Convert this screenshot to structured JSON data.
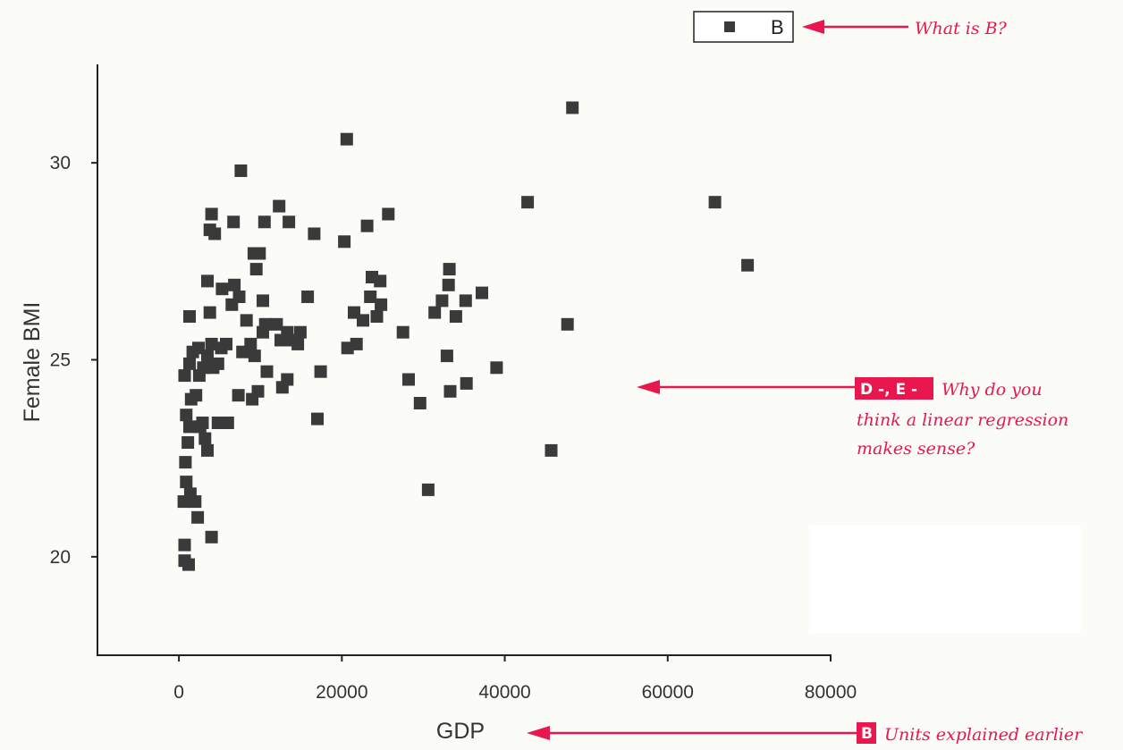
{
  "chart_data": {
    "type": "scatter",
    "xlabel": "GDP",
    "ylabel": "Female BMI",
    "xlim": [
      -10000,
      80000
    ],
    "ylim": [
      17.5,
      32.5
    ],
    "xticks": [
      "0",
      "20000",
      "40000",
      "60000",
      "80000"
    ],
    "yticks": [
      "20",
      "25",
      "30"
    ],
    "grid": false,
    "legend_position": "top-right",
    "series": [
      {
        "name": "B",
        "color": "#3a3a3a",
        "marker": "square",
        "points": [
          [
            600,
            21.4
          ],
          [
            700,
            20.3
          ],
          [
            700,
            19.9
          ],
          [
            1200,
            19.8
          ],
          [
            900,
            21.9
          ],
          [
            1400,
            21.6
          ],
          [
            800,
            22.4
          ],
          [
            1100,
            22.9
          ],
          [
            1300,
            23.3
          ],
          [
            900,
            23.6
          ],
          [
            1500,
            24.0
          ],
          [
            700,
            24.6
          ],
          [
            1300,
            24.9
          ],
          [
            1700,
            25.2
          ],
          [
            1300,
            26.1
          ],
          [
            2000,
            21.4
          ],
          [
            2300,
            21.0
          ],
          [
            2600,
            23.3
          ],
          [
            2900,
            23.4
          ],
          [
            3200,
            23.0
          ],
          [
            3500,
            22.7
          ],
          [
            2100,
            24.1
          ],
          [
            2500,
            24.6
          ],
          [
            3000,
            24.8
          ],
          [
            3500,
            25.1
          ],
          [
            4000,
            25.4
          ],
          [
            2400,
            25.3
          ],
          [
            3800,
            26.2
          ],
          [
            3500,
            27.0
          ],
          [
            3800,
            28.3
          ],
          [
            4400,
            28.2
          ],
          [
            4000,
            28.7
          ],
          [
            4000,
            20.5
          ],
          [
            4200,
            24.8
          ],
          [
            4800,
            24.9
          ],
          [
            5200,
            25.3
          ],
          [
            5800,
            25.4
          ],
          [
            4800,
            23.4
          ],
          [
            6000,
            23.4
          ],
          [
            5300,
            26.8
          ],
          [
            6800,
            26.9
          ],
          [
            6500,
            26.4
          ],
          [
            6700,
            28.5
          ],
          [
            7300,
            24.1
          ],
          [
            7800,
            25.2
          ],
          [
            7400,
            26.6
          ],
          [
            7600,
            29.8
          ],
          [
            8300,
            26.0
          ],
          [
            8800,
            25.4
          ],
          [
            9300,
            25.1
          ],
          [
            9000,
            24.0
          ],
          [
            9700,
            24.2
          ],
          [
            9200,
            27.7
          ],
          [
            9500,
            27.3
          ],
          [
            9900,
            27.7
          ],
          [
            10300,
            26.5
          ],
          [
            10300,
            25.7
          ],
          [
            10600,
            25.9
          ],
          [
            10800,
            24.7
          ],
          [
            10500,
            28.5
          ],
          [
            12000,
            25.9
          ],
          [
            12500,
            25.5
          ],
          [
            12300,
            28.9
          ],
          [
            12700,
            24.3
          ],
          [
            13300,
            24.5
          ],
          [
            13500,
            28.5
          ],
          [
            13300,
            25.7
          ],
          [
            14000,
            25.5
          ],
          [
            14600,
            25.4
          ],
          [
            14900,
            25.7
          ],
          [
            15800,
            26.6
          ],
          [
            16600,
            28.2
          ],
          [
            17000,
            23.5
          ],
          [
            17400,
            24.7
          ],
          [
            20300,
            28.0
          ],
          [
            20600,
            30.6
          ],
          [
            20700,
            25.3
          ],
          [
            21500,
            26.2
          ],
          [
            21800,
            25.4
          ],
          [
            22600,
            26.0
          ],
          [
            23100,
            28.4
          ],
          [
            23500,
            26.6
          ],
          [
            23700,
            27.1
          ],
          [
            24300,
            26.1
          ],
          [
            24700,
            27.0
          ],
          [
            24800,
            26.4
          ],
          [
            25700,
            28.7
          ],
          [
            27500,
            25.7
          ],
          [
            28200,
            24.5
          ],
          [
            29600,
            23.9
          ],
          [
            30600,
            21.7
          ],
          [
            31400,
            26.2
          ],
          [
            32300,
            26.5
          ],
          [
            32900,
            25.1
          ],
          [
            33100,
            26.9
          ],
          [
            33200,
            27.3
          ],
          [
            33300,
            24.2
          ],
          [
            34000,
            26.1
          ],
          [
            35200,
            26.5
          ],
          [
            35300,
            24.4
          ],
          [
            37200,
            26.7
          ],
          [
            39000,
            24.8
          ],
          [
            42800,
            29.0
          ],
          [
            45700,
            22.7
          ],
          [
            47700,
            25.9
          ],
          [
            48300,
            31.4
          ],
          [
            65800,
            29.0
          ],
          [
            69800,
            27.4
          ]
        ]
      }
    ]
  },
  "legend": {
    "label": "B"
  },
  "annotations": {
    "note1": {
      "text": "What is B?"
    },
    "note2": {
      "badge": "D -, E -",
      "line1": "Why do you",
      "line2": "think a linear regression",
      "line3": "makes sense?"
    },
    "note3": {
      "badge": "B",
      "text": "Units explained earlier"
    },
    "accent_color": "#e8174d"
  }
}
